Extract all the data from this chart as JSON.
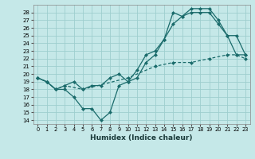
{
  "xlabel": "Humidex (Indice chaleur)",
  "xlim": [
    -0.5,
    23.5
  ],
  "ylim": [
    13.5,
    29.0
  ],
  "xticks": [
    0,
    1,
    2,
    3,
    4,
    5,
    6,
    7,
    8,
    9,
    10,
    11,
    12,
    13,
    14,
    15,
    16,
    17,
    18,
    19,
    20,
    21,
    22,
    23
  ],
  "yticks": [
    14,
    15,
    16,
    17,
    18,
    19,
    20,
    21,
    22,
    23,
    24,
    25,
    26,
    27,
    28
  ],
  "bg_color": "#c5e8e8",
  "grid_color": "#9ecece",
  "line_color": "#1a6b6b",
  "line1_x": [
    0,
    1,
    2,
    3,
    4,
    5,
    6,
    7,
    8,
    9,
    10,
    11,
    12,
    13,
    14,
    15,
    16,
    17,
    18,
    19,
    20,
    21,
    22,
    23
  ],
  "line1_y": [
    19.5,
    19.0,
    18.0,
    18.0,
    17.0,
    15.5,
    15.5,
    14.0,
    15.0,
    18.5,
    19.0,
    19.5,
    21.5,
    22.5,
    24.5,
    28.0,
    27.5,
    28.0,
    28.0,
    28.0,
    26.5,
    25.0,
    22.5,
    22.5
  ],
  "line2_x": [
    0,
    1,
    2,
    3,
    4,
    5,
    6,
    7,
    8,
    9,
    10,
    11,
    12,
    13,
    14,
    15,
    16,
    17,
    18,
    19,
    20,
    21,
    22,
    23
  ],
  "line2_y": [
    19.5,
    19.0,
    18.0,
    18.5,
    19.0,
    18.0,
    18.5,
    18.5,
    19.5,
    20.0,
    19.0,
    20.5,
    22.5,
    23.0,
    24.5,
    26.5,
    27.5,
    28.5,
    28.5,
    28.5,
    27.0,
    25.0,
    25.0,
    22.5
  ],
  "line3_x": [
    0,
    1,
    2,
    3,
    5,
    10,
    13,
    15,
    17,
    19,
    21,
    22,
    23
  ],
  "line3_y": [
    19.5,
    19.0,
    18.0,
    18.5,
    18.0,
    19.5,
    21.0,
    21.5,
    21.5,
    22.0,
    22.5,
    22.5,
    22.0
  ]
}
